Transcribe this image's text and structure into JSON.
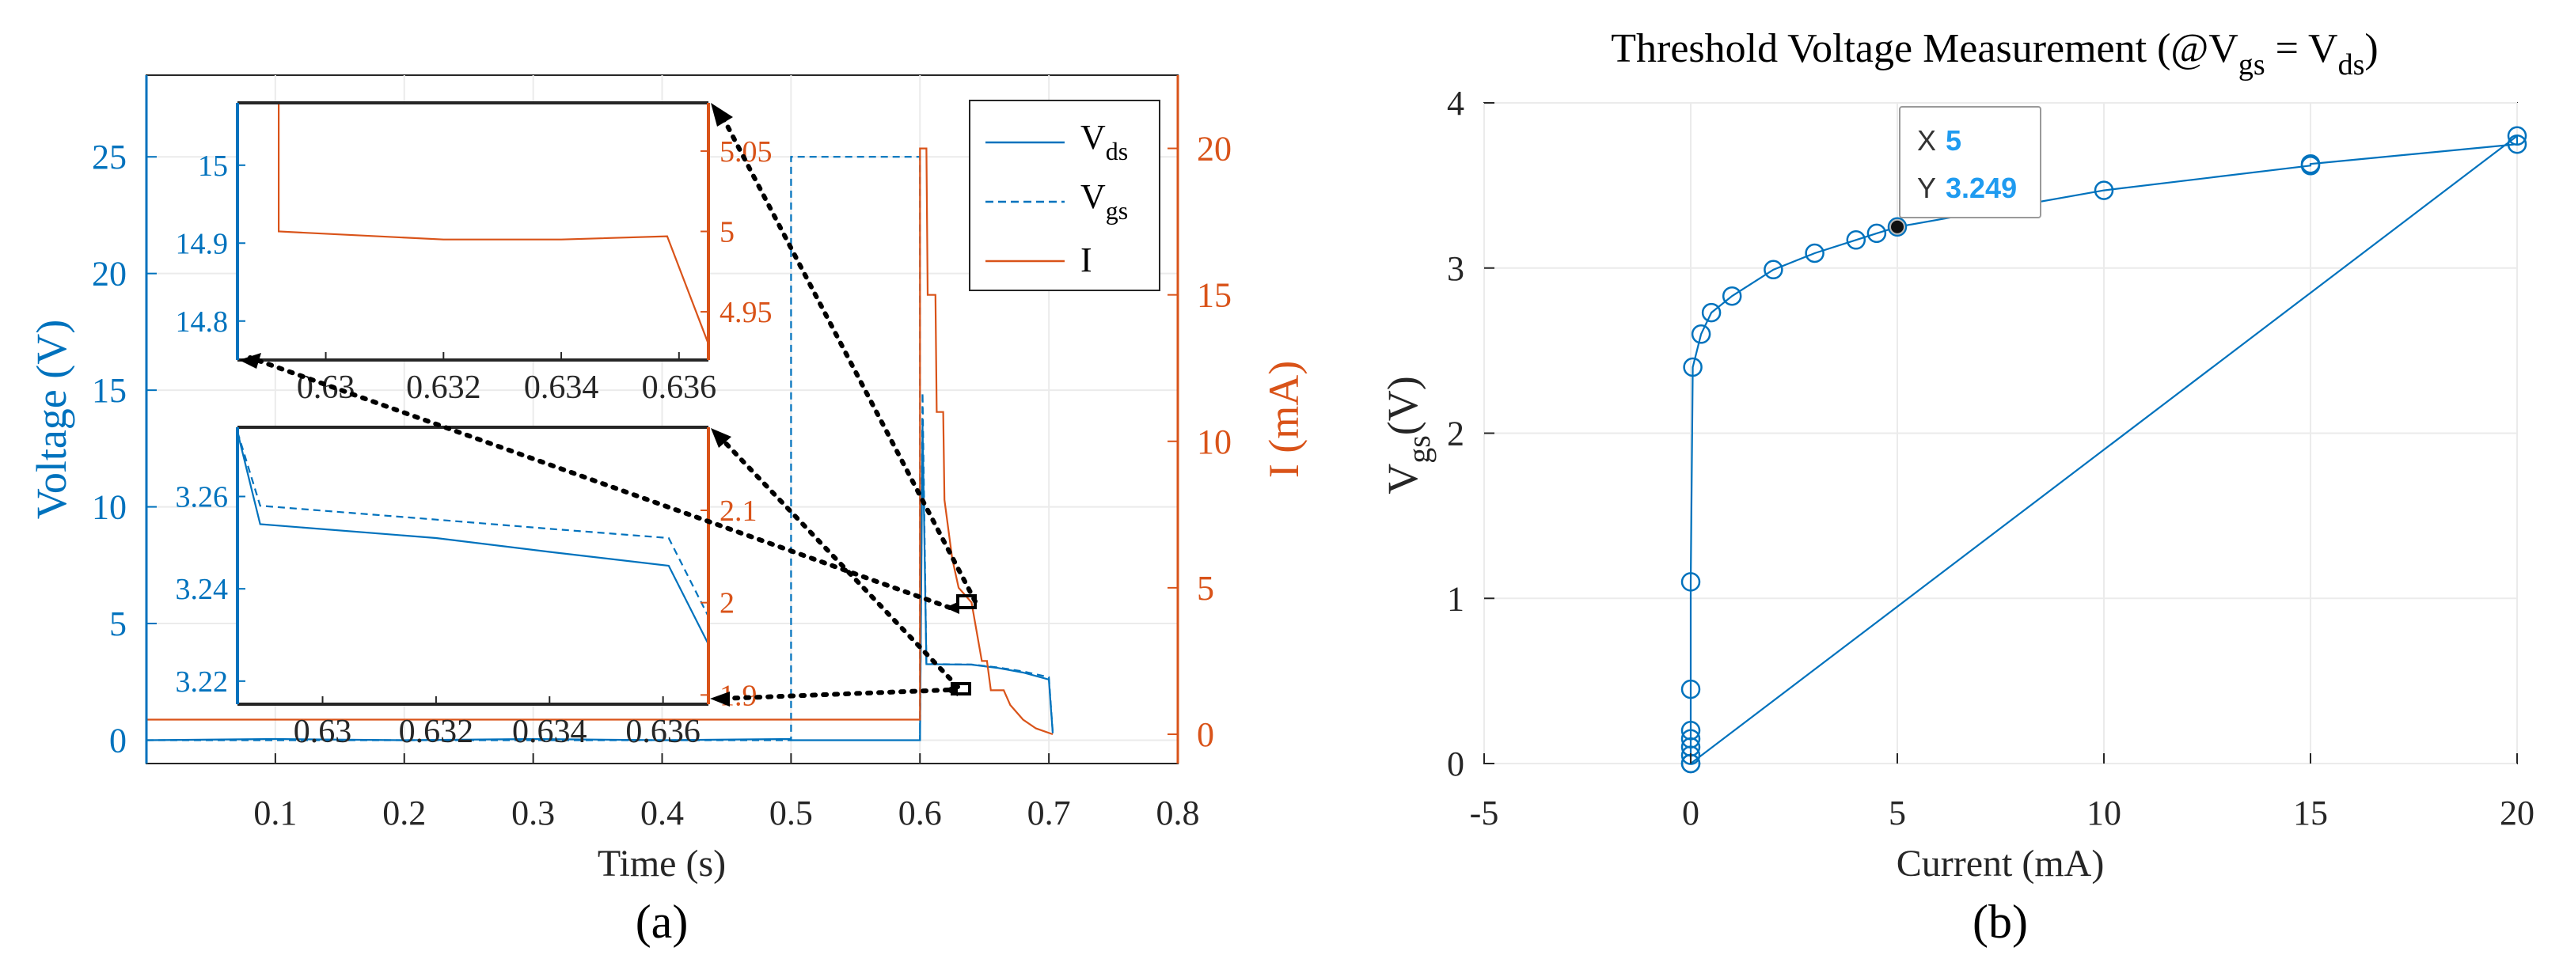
{
  "chart_data": [
    {
      "id": "a",
      "type": "line",
      "panel_label": "(a)",
      "xlabel": "Time (s)",
      "ylabel_left": "Voltage (V)",
      "ylabel_right": "I (mA)",
      "xlim": [
        0,
        0.8
      ],
      "ylim_left": [
        -1,
        28.5
      ],
      "ylim_right": [
        -1,
        22.5
      ],
      "x_ticks": [
        "0.1",
        "0.2",
        "0.3",
        "0.4",
        "0.5",
        "0.6",
        "0.7",
        "0.8"
      ],
      "y_left_ticks": [
        "0",
        "5",
        "10",
        "15",
        "20",
        "25"
      ],
      "y_right_ticks": [
        "0",
        "5",
        "10",
        "15",
        "20"
      ],
      "legend": [
        "V_ds",
        "V_gs",
        "I"
      ],
      "legend_placement": "top-right",
      "series": [
        {
          "name": "V_ds",
          "axis": "left",
          "style": "solid",
          "color": "#0072BD",
          "points": [
            [
              0,
              0
            ],
            [
              0.1,
              0.05
            ],
            [
              0.2,
              0.0
            ],
            [
              0.3,
              0.05
            ],
            [
              0.4,
              0.0
            ],
            [
              0.5,
              0.05
            ],
            [
              0.5,
              0
            ],
            [
              0.6,
              0
            ],
            [
              0.6,
              0
            ],
            [
              0.602,
              13.5
            ],
            [
              0.605,
              3.26
            ],
            [
              0.62,
              3.25
            ],
            [
              0.64,
              3.24
            ],
            [
              0.66,
              3.1
            ],
            [
              0.68,
              2.9
            ],
            [
              0.7,
              2.6
            ],
            [
              0.703,
              0.3
            ]
          ]
        },
        {
          "name": "V_gs",
          "axis": "left",
          "style": "dashed",
          "color": "#0072BD",
          "points": [
            [
              0,
              0
            ],
            [
              0.5,
              0
            ],
            [
              0.5,
              25
            ],
            [
              0.6,
              25
            ],
            [
              0.6,
              0
            ],
            [
              0.602,
              14.9
            ],
            [
              0.605,
              3.27
            ],
            [
              0.62,
              3.255
            ],
            [
              0.64,
              3.245
            ],
            [
              0.66,
              3.12
            ],
            [
              0.68,
              2.95
            ],
            [
              0.7,
              2.7
            ],
            [
              0.703,
              0.35
            ]
          ]
        },
        {
          "name": "I",
          "axis": "right",
          "style": "solid",
          "color": "#D95319",
          "points": [
            [
              0,
              0.5
            ],
            [
              0.6,
              0.5
            ],
            [
              0.6,
              20
            ],
            [
              0.605,
              20
            ],
            [
              0.606,
              15
            ],
            [
              0.612,
              15
            ],
            [
              0.613,
              11
            ],
            [
              0.618,
              11
            ],
            [
              0.619,
              8
            ],
            [
              0.625,
              6
            ],
            [
              0.63,
              5
            ],
            [
              0.64,
              4.5
            ],
            [
              0.648,
              2.5
            ],
            [
              0.652,
              2.5
            ],
            [
              0.655,
              1.5
            ],
            [
              0.665,
              1.5
            ],
            [
              0.67,
              1.0
            ],
            [
              0.68,
              0.5
            ],
            [
              0.69,
              0.2
            ],
            [
              0.703,
              0
            ]
          ]
        }
      ],
      "insets": [
        {
          "id": "inset-top",
          "xlim": [
            0.6285,
            0.6365
          ],
          "ylim_left": [
            14.75,
            15.08
          ],
          "ylim_right": [
            4.92,
            5.08
          ],
          "x_ticks": [
            "0.63",
            "0.632",
            "0.634",
            "0.636"
          ],
          "y_left_ticks": [
            "14.8",
            "14.9",
            "15"
          ],
          "y_right_ticks": [
            "4.95",
            "5",
            "5.05"
          ],
          "series": [
            {
              "name": "I",
              "axis": "right",
              "color": "#D95319",
              "style": "solid",
              "points": [
                [
                  0.6292,
                  5.08
                ],
                [
                  0.6292,
                  5.0
                ],
                [
                  0.632,
                  4.995
                ],
                [
                  0.634,
                  4.995
                ],
                [
                  0.6358,
                  4.997
                ],
                [
                  0.6365,
                  4.93
                ]
              ]
            }
          ]
        },
        {
          "id": "inset-bottom",
          "xlim": [
            0.6285,
            0.6368
          ],
          "ylim_left": [
            3.215,
            3.275
          ],
          "ylim_right": [
            1.89,
            2.19
          ],
          "x_ticks": [
            "0.63",
            "0.632",
            "0.634",
            "0.636"
          ],
          "y_left_ticks": [
            "3.22",
            "3.24",
            "3.26"
          ],
          "y_right_ticks": [
            "1.9",
            "2",
            "2.1"
          ],
          "series": [
            {
              "name": "V_ds",
              "axis": "left",
              "color": "#0072BD",
              "style": "solid",
              "points": [
                [
                  0.6285,
                  3.274
                ],
                [
                  0.6289,
                  3.254
                ],
                [
                  0.632,
                  3.251
                ],
                [
                  0.634,
                  3.248
                ],
                [
                  0.6361,
                  3.245
                ],
                [
                  0.6368,
                  3.228
                ]
              ]
            },
            {
              "name": "V_gs",
              "axis": "left",
              "color": "#0072BD",
              "style": "dashed",
              "points": [
                [
                  0.6285,
                  3.274
                ],
                [
                  0.6289,
                  3.258
                ],
                [
                  0.632,
                  3.255
                ],
                [
                  0.634,
                  3.253
                ],
                [
                  0.6361,
                  3.251
                ],
                [
                  0.6368,
                  3.234
                ]
              ]
            }
          ]
        }
      ]
    },
    {
      "id": "b",
      "type": "line",
      "panel_label": "(b)",
      "title": "Threshold Voltage Measurement (@V_gs = V_ds)",
      "xlabel": "Current (mA)",
      "ylabel": "V_gs (V)",
      "xlim": [
        -5,
        20
      ],
      "ylim": [
        0,
        4
      ],
      "x_ticks": [
        "-5",
        "0",
        "5",
        "10",
        "15",
        "20"
      ],
      "y_ticks": [
        "0",
        "1",
        "2",
        "3",
        "4"
      ],
      "grid": true,
      "markers": "circle",
      "points": [
        [
          0,
          0.0
        ],
        [
          0,
          0.05
        ],
        [
          0,
          0.1
        ],
        [
          0,
          0.15
        ],
        [
          0,
          0.2
        ],
        [
          0,
          0.45
        ],
        [
          0,
          1.1
        ],
        [
          0.05,
          2.4
        ],
        [
          0.25,
          2.6
        ],
        [
          0.5,
          2.73
        ],
        [
          1,
          2.83
        ],
        [
          2,
          2.99
        ],
        [
          3,
          3.09
        ],
        [
          4,
          3.17
        ],
        [
          4.5,
          3.21
        ],
        [
          5,
          3.249
        ],
        [
          10,
          3.47
        ],
        [
          15,
          3.62
        ],
        [
          15,
          3.63
        ],
        [
          20,
          3.75
        ],
        [
          20,
          3.8
        ],
        [
          0,
          0
        ]
      ],
      "datatip": {
        "x_label": "X",
        "x_value": "5",
        "y_label": "Y",
        "y_value": "3.249",
        "x": 5,
        "y": 3.249
      }
    }
  ],
  "colors": {
    "blue": "#0072BD",
    "orange": "#D95319",
    "tip": "#1F9BF0"
  }
}
